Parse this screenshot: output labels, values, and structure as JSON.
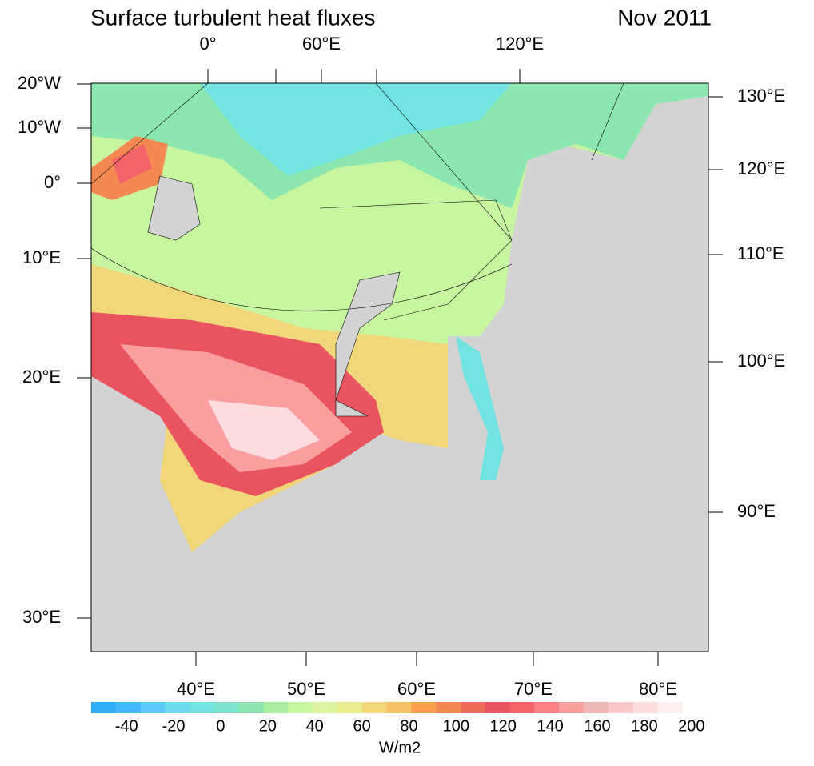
{
  "title": "Surface turbulent heat fluxes",
  "date": "Nov 2011",
  "left_labels": [
    "20°W",
    "10°W",
    "0°",
    "10°E",
    "20°E",
    "30°E"
  ],
  "top_labels": [
    "0°",
    "60°E",
    "120°E"
  ],
  "right_labels": [
    "130°E",
    "120°E",
    "110°E",
    "100°E",
    "90°E"
  ],
  "bottom_labels": [
    "40°E",
    "50°E",
    "60°E",
    "70°E",
    "80°E"
  ],
  "colorbar": {
    "lim": [
      -55,
      196
    ],
    "ticks": [
      -40,
      -20,
      0,
      20,
      40,
      60,
      80,
      100,
      120,
      140,
      160,
      180,
      200
    ],
    "colors": [
      "#2eacf7",
      "#43b9f9",
      "#5ccbf9",
      "#6fdbf0",
      "#72e3e0",
      "#7be3cc",
      "#8ce6b0",
      "#a8eda0",
      "#c8f5a0",
      "#dcf3a0",
      "#e8ee8c",
      "#f2d77a",
      "#f6c167",
      "#f9a04c",
      "#f48a52",
      "#ed6a58",
      "#e95460",
      "#f36468",
      "#fa8288",
      "#fa9ea0",
      "#f0b8b8",
      "#fbc6c8",
      "#fbdcdf",
      "#feeef0"
    ],
    "unit": "W/m2"
  }
}
